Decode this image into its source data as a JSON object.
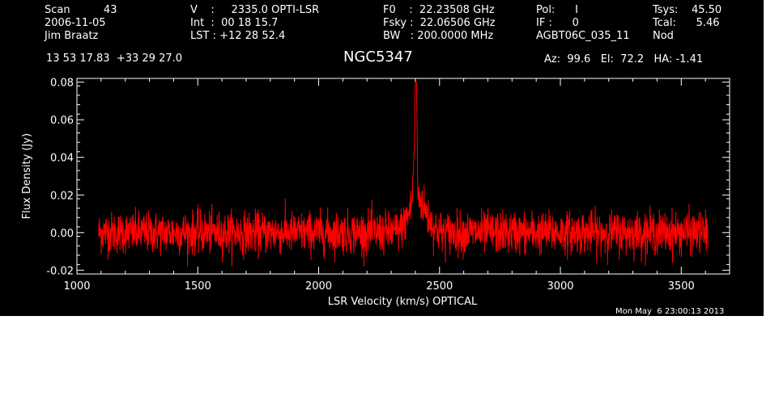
{
  "header": {
    "col1": [
      "Scan          43",
      "2006-11-05",
      "Jim Braatz"
    ],
    "col2": [
      "V    :     2335.0 OPTI-LSR",
      "Int  :  00 18 15.7",
      "LST : +12 28 52.4"
    ],
    "col3": [
      "F0    :  22.23508 GHz",
      "Fsky :  22.06506 GHz",
      "BW   : 200.0000 MHz"
    ],
    "col4": [
      "Pol:      I",
      "IF :      0",
      "AGBT06C_035_11"
    ],
    "col5": [
      "Tsys:    45.50",
      "Tcal:      5.46",
      "Nod"
    ],
    "coords": "13 53 17.83  +33 29 27.0",
    "source": "NGC5347",
    "pointing": "Az:  99.6   El:  72.2   HA: -1.41"
  },
  "timestamp": "Mon May  6 23:00:13 2013",
  "chart_data": {
    "type": "line",
    "xlabel": "LSR Velocity (km/s) OPTICAL",
    "ylabel": "Flux Density (Jy)",
    "xlim": [
      1000,
      3700
    ],
    "ylim": [
      -0.022,
      0.082
    ],
    "xticks": [
      1000,
      1500,
      2000,
      2500,
      3000,
      3500
    ],
    "xtick_labels": [
      "1000",
      "1500",
      "2000",
      "2500",
      "3000",
      "3500"
    ],
    "yticks": [
      -0.02,
      0.0,
      0.02,
      0.04,
      0.06,
      0.08
    ],
    "ytick_labels": [
      "-0.02",
      "0.00",
      "0.02",
      "0.04",
      "0.06",
      "0.08"
    ],
    "grid": false,
    "series": [
      {
        "color": "#ff0000",
        "x_range": [
          1090,
          3610
        ],
        "noise_rms": 0.0055,
        "features": [
          {
            "kind": "broad",
            "center": 2410,
            "width": 35,
            "amp": 0.018
          },
          {
            "kind": "spike",
            "center": 2403,
            "width": 3,
            "amp": 0.062
          },
          {
            "kind": "spike",
            "center": 2398,
            "width": 6,
            "amp": 0.03
          }
        ]
      }
    ]
  },
  "colors": {
    "background": "#000000",
    "foreground": "#ffffff",
    "trace": "#ff0000"
  }
}
